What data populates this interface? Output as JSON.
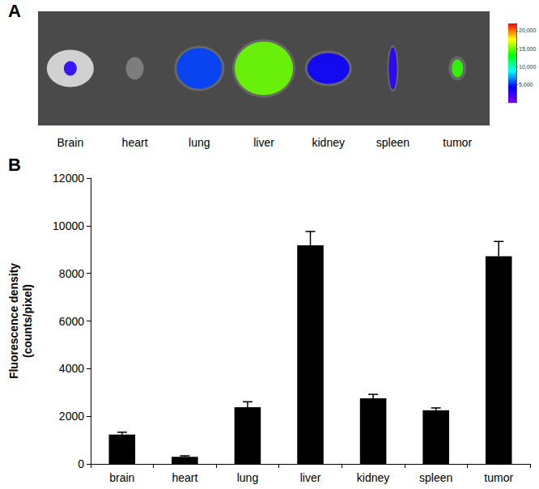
{
  "chart_data": [
    {
      "type": "image",
      "panel": "A",
      "categories": [
        "Brain",
        "heart",
        "lung",
        "liver",
        "kidney",
        "spleen",
        "tumor"
      ],
      "intensity": [
        3000,
        null,
        5500,
        15000,
        4000,
        3000,
        14000
      ],
      "colorbar": {
        "range": [
          0,
          22000
        ],
        "ticks": [
          5000,
          10000,
          15000,
          20000
        ]
      }
    },
    {
      "type": "bar",
      "panel": "B",
      "categories": [
        "brain",
        "heart",
        "lung",
        "liver",
        "kidney",
        "spleen",
        "tumor"
      ],
      "values": [
        1230,
        300,
        2380,
        9180,
        2750,
        2250,
        8720
      ],
      "errors": [
        100,
        40,
        230,
        580,
        170,
        100,
        620
      ],
      "color": "#000000",
      "ylabel": "Fluorescence density\n(counts/pixel)",
      "ylim": [
        0,
        12000
      ],
      "yticks": [
        0,
        2000,
        4000,
        6000,
        8000,
        10000,
        12000
      ],
      "grid": false
    }
  ]
}
